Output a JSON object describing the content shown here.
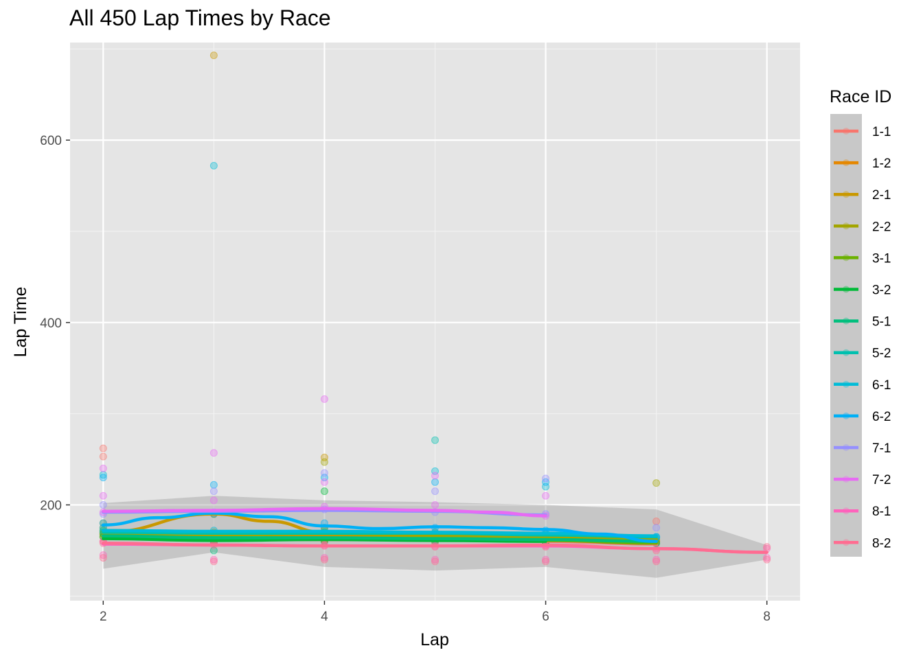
{
  "chart_data": {
    "type": "scatter",
    "title": "All 450 Lap Times by Race",
    "xlabel": "Lap",
    "ylabel": "Lap Time",
    "xlim": [
      1.7,
      8.3
    ],
    "ylim": [
      95,
      707
    ],
    "x_ticks": [
      2,
      4,
      6,
      8
    ],
    "y_ticks": [
      200,
      400,
      600
    ],
    "x_tick_labels": [
      "2",
      "4",
      "6",
      "8"
    ],
    "y_tick_labels": [
      "200",
      "400",
      "600"
    ],
    "grid": true,
    "legend_title": "Race ID",
    "legend_position": "right",
    "smoothing": "loess with confidence band",
    "series": [
      {
        "name": "1-1",
        "color": "#F8766D",
        "points": [
          [
            2,
            262
          ],
          [
            2,
            253
          ],
          [
            2,
            170
          ],
          [
            2,
            160
          ],
          [
            3,
            165
          ],
          [
            3,
            158
          ],
          [
            4,
            168
          ],
          [
            4,
            160
          ],
          [
            5,
            165
          ],
          [
            5,
            158
          ],
          [
            6,
            162
          ],
          [
            6,
            156
          ],
          [
            7,
            182
          ],
          [
            7,
            158
          ]
        ],
        "smooth": [
          [
            2,
            166
          ],
          [
            3,
            163
          ],
          [
            4,
            162
          ],
          [
            5,
            162
          ],
          [
            6,
            160
          ],
          [
            7,
            157
          ]
        ]
      },
      {
        "name": "1-2",
        "color": "#E58700",
        "points": [
          [
            2,
            175
          ],
          [
            2,
            165
          ],
          [
            3,
            190
          ],
          [
            3,
            170
          ],
          [
            4,
            172
          ],
          [
            4,
            162
          ],
          [
            5,
            168
          ],
          [
            6,
            166
          ],
          [
            7,
            160
          ]
        ],
        "smooth": [
          [
            2,
            165
          ],
          [
            3,
            168
          ],
          [
            4,
            166
          ],
          [
            5,
            165
          ],
          [
            6,
            163
          ],
          [
            7,
            160
          ]
        ]
      },
      {
        "name": "2-1",
        "color": "#C99800",
        "points": [
          [
            2,
            180
          ],
          [
            2,
            168
          ],
          [
            3,
            693
          ],
          [
            3,
            190
          ],
          [
            4,
            252
          ],
          [
            4,
            175
          ],
          [
            5,
            170
          ],
          [
            6,
            168
          ],
          [
            7,
            162
          ]
        ],
        "smooth": [
          [
            2,
            170
          ],
          [
            3,
            190
          ],
          [
            3.5,
            182
          ],
          [
            4,
            170
          ],
          [
            5,
            168
          ],
          [
            6,
            166
          ],
          [
            7,
            162
          ]
        ]
      },
      {
        "name": "2-2",
        "color": "#A3A500",
        "points": [
          [
            2,
            172
          ],
          [
            3,
            168
          ],
          [
            4,
            247
          ],
          [
            4,
            170
          ],
          [
            5,
            166
          ],
          [
            6,
            165
          ],
          [
            7,
            224
          ],
          [
            7,
            160
          ]
        ],
        "smooth": [
          [
            2,
            168
          ],
          [
            3,
            167
          ],
          [
            4,
            168
          ],
          [
            5,
            166
          ],
          [
            6,
            165
          ],
          [
            7,
            162
          ]
        ]
      },
      {
        "name": "3-1",
        "color": "#6BB100",
        "points": [
          [
            2,
            168
          ],
          [
            3,
            160
          ],
          [
            4,
            165
          ],
          [
            5,
            162
          ],
          [
            6,
            160
          ],
          [
            7,
            158
          ]
        ],
        "smooth": [
          [
            2,
            165
          ],
          [
            3,
            163
          ],
          [
            4,
            163
          ],
          [
            5,
            162
          ],
          [
            6,
            161
          ],
          [
            7,
            158
          ]
        ]
      },
      {
        "name": "3-2",
        "color": "#00BA38",
        "points": [
          [
            2,
            165
          ],
          [
            3,
            158
          ],
          [
            4,
            215
          ],
          [
            4,
            160
          ],
          [
            5,
            160
          ],
          [
            6,
            158
          ]
        ],
        "smooth": [
          [
            2,
            163
          ],
          [
            3,
            161
          ],
          [
            4,
            162
          ],
          [
            5,
            161
          ],
          [
            6,
            160
          ]
        ]
      },
      {
        "name": "5-1",
        "color": "#00BF7D",
        "points": [
          [
            2,
            170
          ],
          [
            3,
            150
          ],
          [
            4,
            165
          ],
          [
            5,
            162
          ],
          [
            6,
            160
          ],
          [
            7,
            158
          ]
        ],
        "smooth": [
          [
            2,
            166
          ],
          [
            3,
            164
          ],
          [
            4,
            164
          ],
          [
            5,
            163
          ],
          [
            6,
            162
          ],
          [
            7,
            160
          ]
        ]
      },
      {
        "name": "5-2",
        "color": "#00C0AF",
        "points": [
          [
            2,
            172
          ],
          [
            3,
            168
          ],
          [
            4,
            170
          ],
          [
            5,
            271
          ],
          [
            5,
            168
          ],
          [
            6,
            166
          ],
          [
            7,
            164
          ]
        ],
        "smooth": [
          [
            2,
            170
          ],
          [
            3,
            169
          ],
          [
            4,
            169
          ],
          [
            5,
            169
          ],
          [
            6,
            167
          ],
          [
            7,
            165
          ]
        ]
      },
      {
        "name": "6-1",
        "color": "#00BCD8",
        "points": [
          [
            2,
            233
          ],
          [
            2,
            175
          ],
          [
            3,
            572
          ],
          [
            3,
            172
          ],
          [
            4,
            175
          ],
          [
            5,
            237
          ],
          [
            5,
            170
          ],
          [
            6,
            220
          ],
          [
            6,
            168
          ],
          [
            7,
            165
          ]
        ],
        "smooth": [
          [
            2,
            172
          ],
          [
            3,
            171
          ],
          [
            4,
            171
          ],
          [
            5,
            170
          ],
          [
            6,
            169
          ],
          [
            7,
            166
          ]
        ]
      },
      {
        "name": "6-2",
        "color": "#00B0F6",
        "points": [
          [
            2,
            230
          ],
          [
            2,
            180
          ],
          [
            3,
            222
          ],
          [
            3,
            190
          ],
          [
            4,
            230
          ],
          [
            4,
            180
          ],
          [
            5,
            225
          ],
          [
            5,
            175
          ],
          [
            6,
            225
          ],
          [
            6,
            172
          ],
          [
            7,
            165
          ]
        ],
        "smooth": [
          [
            2,
            178
          ],
          [
            2.5,
            186
          ],
          [
            3,
            191
          ],
          [
            3.5,
            187
          ],
          [
            4,
            177
          ],
          [
            4.5,
            174
          ],
          [
            5,
            176
          ],
          [
            5.5,
            175
          ],
          [
            6,
            173
          ],
          [
            6.5,
            168
          ],
          [
            7,
            160
          ]
        ]
      },
      {
        "name": "7-1",
        "color": "#9590FF",
        "points": [
          [
            2,
            200
          ],
          [
            2,
            190
          ],
          [
            3,
            215
          ],
          [
            3,
            192
          ],
          [
            4,
            235
          ],
          [
            4,
            195
          ],
          [
            5,
            215
          ],
          [
            5,
            192
          ],
          [
            6,
            229
          ],
          [
            6,
            190
          ],
          [
            7,
            175
          ]
        ],
        "smooth": [
          [
            2,
            192
          ],
          [
            3,
            193
          ],
          [
            4,
            194
          ],
          [
            5,
            193
          ],
          [
            6,
            189
          ]
        ]
      },
      {
        "name": "7-2",
        "color": "#E76BF3",
        "points": [
          [
            2,
            240
          ],
          [
            2,
            210
          ],
          [
            2,
            192
          ],
          [
            3,
            257
          ],
          [
            3,
            205
          ],
          [
            4,
            316
          ],
          [
            4,
            225
          ],
          [
            4,
            198
          ],
          [
            5,
            232
          ],
          [
            5,
            200
          ],
          [
            6,
            210
          ],
          [
            6,
            188
          ]
        ],
        "smooth": [
          [
            2,
            193
          ],
          [
            3,
            194
          ],
          [
            4,
            196
          ],
          [
            5,
            194
          ],
          [
            5.5,
            192
          ],
          [
            6,
            188
          ]
        ]
      },
      {
        "name": "8-1",
        "color": "#FF62BC",
        "points": [
          [
            2,
            160
          ],
          [
            2,
            145
          ],
          [
            3,
            158
          ],
          [
            3,
            140
          ],
          [
            4,
            156
          ],
          [
            4,
            142
          ],
          [
            5,
            155
          ],
          [
            5,
            140
          ],
          [
            6,
            155
          ],
          [
            6,
            140
          ],
          [
            7,
            152
          ],
          [
            7,
            140
          ],
          [
            8,
            152
          ],
          [
            8,
            142
          ]
        ],
        "smooth": [
          [
            2,
            157
          ],
          [
            3,
            156
          ],
          [
            4,
            155
          ],
          [
            5,
            155
          ],
          [
            6,
            155
          ],
          [
            7,
            152
          ],
          [
            8,
            148
          ]
        ]
      },
      {
        "name": "8-2",
        "color": "#FF6C91",
        "points": [
          [
            2,
            158
          ],
          [
            2,
            142
          ],
          [
            3,
            156
          ],
          [
            3,
            138
          ],
          [
            4,
            155
          ],
          [
            4,
            140
          ],
          [
            5,
            154
          ],
          [
            5,
            138
          ],
          [
            6,
            154
          ],
          [
            6,
            138
          ],
          [
            7,
            150
          ],
          [
            7,
            138
          ],
          [
            8,
            154
          ],
          [
            8,
            140
          ]
        ],
        "smooth": [
          [
            2,
            158
          ],
          [
            3,
            156
          ],
          [
            4,
            155
          ],
          [
            5,
            155
          ],
          [
            6,
            156
          ],
          [
            7,
            152
          ],
          [
            8,
            148
          ]
        ]
      }
    ],
    "confidence_band": {
      "upper": [
        [
          2,
          202
        ],
        [
          3,
          210
        ],
        [
          4,
          205
        ],
        [
          5,
          203
        ],
        [
          6,
          200
        ],
        [
          7,
          195
        ],
        [
          8,
          156
        ]
      ],
      "lower": [
        [
          2,
          130
        ],
        [
          3,
          148
        ],
        [
          4,
          132
        ],
        [
          5,
          128
        ],
        [
          6,
          132
        ],
        [
          7,
          120
        ],
        [
          8,
          140
        ]
      ]
    }
  }
}
